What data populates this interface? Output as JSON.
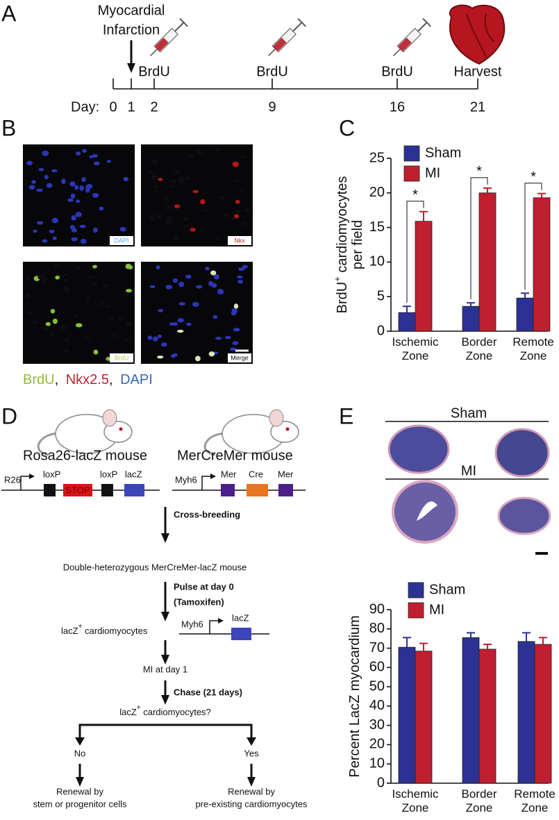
{
  "panel_labels": [
    "A",
    "B",
    "C",
    "D",
    "E"
  ],
  "panel_a": {
    "event_lines": [
      "Myocardial",
      "Infarction"
    ],
    "injections": [
      "BrdU",
      "BrdU",
      "BrdU"
    ],
    "harvest": "Harvest",
    "day_label": "Day:",
    "days": [
      0,
      1,
      2,
      9,
      16,
      21
    ]
  },
  "panel_b": {
    "image_labels": [
      "DAPI",
      "Nkx",
      "BrdU",
      "Merge"
    ],
    "legend": [
      "BrdU",
      "Nkx2.5",
      "DAPI"
    ],
    "legend_separator": ","
  },
  "panel_d": {
    "mouse_1": "Rosa26-lacZ mouse",
    "mouse_2": "MerCreMer mouse",
    "construct_1": [
      "R26",
      "loxP",
      "STOP",
      "loxP",
      "lacZ"
    ],
    "construct_2": [
      "Myh6",
      "Mer",
      "Cre",
      "Mer"
    ],
    "step_1": "Cross-breeding",
    "result_1": "Double-heterozygous MerCreMer-lacZ mouse",
    "step_2": [
      "Pulse at day 0",
      "(Tamoxifen)"
    ],
    "result_2": {
      "main": "lacZ",
      "sup": "+",
      "rest": " cardiomyocytes"
    },
    "construct_3": [
      "Myh6",
      "lacZ"
    ],
    "result_3": "MI at day 1",
    "step_3": "Chase (21 days)",
    "question": {
      "main": "lacZ",
      "sup": "+",
      "rest": " cardiomyocytes?"
    },
    "answers": [
      "No",
      "Yes"
    ],
    "outcome_no": [
      "Renewal by",
      "stem or progenitor cells"
    ],
    "outcome_yes": [
      "Renewal by",
      "pre-existing cardiomyocytes"
    ]
  },
  "panel_e": {
    "groups": [
      "Sham",
      "MI"
    ]
  },
  "chart_data": [
    {
      "type": "bar",
      "categories": [
        "Ischemic Zone",
        "Border Zone",
        "Remote Zone"
      ],
      "y_label": {
        "main": "BrdU",
        "sup": "+",
        "rest": " cardiomyocytes",
        "line2": "per field"
      },
      "series": [
        {
          "name": "Sham",
          "color": "#2b3293",
          "values": [
            2.7,
            3.6,
            4.8
          ],
          "errors": [
            0.9,
            0.5,
            0.7
          ]
        },
        {
          "name": "MI",
          "color": "#c01f2f",
          "values": [
            15.9,
            20.0,
            19.3
          ],
          "errors": [
            1.4,
            0.7,
            0.6
          ]
        }
      ],
      "significance": [
        "*",
        "*",
        "*"
      ],
      "ylim": [
        0,
        25
      ],
      "yticks": [
        0,
        5,
        10,
        15,
        20,
        25
      ]
    },
    {
      "type": "bar",
      "categories": [
        "Ischemic Zone",
        "Border Zone",
        "Remote Zone"
      ],
      "y_label": {
        "main": "Percent LacZ myocardium"
      },
      "series": [
        {
          "name": "Sham",
          "color": "#2b3293",
          "values": [
            70.5,
            75.5,
            73.5
          ],
          "errors": [
            5,
            2.5,
            4.5
          ]
        },
        {
          "name": "MI",
          "color": "#c01f2f",
          "values": [
            68.5,
            69.5,
            72
          ],
          "errors": [
            4,
            2.5,
            3.5
          ]
        }
      ],
      "ylim": [
        0,
        90
      ],
      "yticks": [
        0,
        10,
        20,
        30,
        40,
        50,
        60,
        70,
        80,
        90
      ]
    }
  ]
}
